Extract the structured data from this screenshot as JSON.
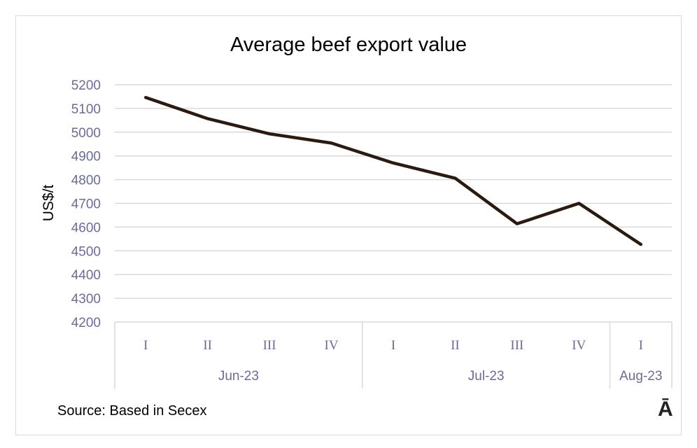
{
  "chart_data": {
    "type": "line",
    "title": "Average beef export value",
    "ylabel": "US$/t",
    "xlabel": "",
    "ylim": [
      4200,
      5200
    ],
    "yticks": [
      4200,
      4300,
      4400,
      4500,
      4600,
      4700,
      4800,
      4900,
      5000,
      5100,
      5200
    ],
    "grid": true,
    "categories": [
      "I",
      "II",
      "III",
      "IV",
      "I",
      "II",
      "III",
      "IV",
      "I"
    ],
    "groups": [
      {
        "label": "Jun-23",
        "count": 4
      },
      {
        "label": "Jul-23",
        "count": 4
      },
      {
        "label": "Aug-23",
        "count": 1
      }
    ],
    "values": [
      5146,
      5057,
      4993,
      4954,
      4870,
      4806,
      4614,
      4700,
      4527
    ],
    "line_color": "#2b1a10",
    "tick_color": "#6b6b9a"
  },
  "source": "Source: Based in Secex",
  "logo": "Ā"
}
